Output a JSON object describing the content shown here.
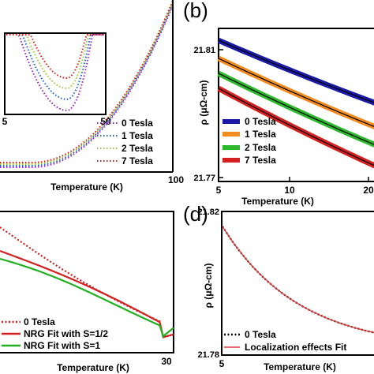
{
  "chart_data": [
    {
      "panel": "a",
      "type": "line",
      "xlabel": "Temperature (K)",
      "ylabel": "",
      "xticks": [
        "100"
      ],
      "legend": {
        "placement": "bottom-right",
        "entries": [
          "0 Tesla",
          "1 Tesla",
          "2 Tesla",
          "7 Tesla"
        ]
      },
      "series": [
        {
          "name": "0 Tesla",
          "color": "#a020c8",
          "style": "dotted"
        },
        {
          "name": "1 Tesla",
          "color": "#1f63d8",
          "style": "dotted"
        },
        {
          "name": "2 Tesla",
          "color": "#9acd32",
          "style": "dotted"
        },
        {
          "name": "7 Tesla",
          "color": "#d62020",
          "style": "dotted"
        }
      ],
      "inset": {
        "xticks": [
          "5",
          "50"
        ],
        "xlim": [
          5,
          50
        ]
      }
    },
    {
      "panel": "b",
      "label": "(b)",
      "type": "line",
      "xlabel": "Temperature (K)",
      "ylabel": "ρ (μΩ-cm)",
      "xlim": [
        5,
        23
      ],
      "ylim": [
        21.767,
        21.818
      ],
      "xticks": [
        "5",
        "10",
        "20"
      ],
      "yticks": [
        "21.81",
        "21.77"
      ],
      "legend": {
        "placement": "bottom-left",
        "entries": [
          "0 Tesla",
          "1 Tesla",
          "2 Tesla",
          "7 Tesla"
        ]
      },
      "series": [
        {
          "name": "0 Tesla",
          "color": "#1a1aa6",
          "x": [
            5,
            23
          ],
          "y": [
            21.814,
            21.793
          ]
        },
        {
          "name": "1 Tesla",
          "color": "#f28c1e",
          "x": [
            5,
            23
          ],
          "y": [
            21.808,
            21.785
          ]
        },
        {
          "name": "2 Tesla",
          "color": "#2db82d",
          "x": [
            5,
            23
          ],
          "y": [
            21.803,
            21.779
          ]
        },
        {
          "name": "7 Tesla",
          "color": "#d42020",
          "x": [
            5,
            23
          ],
          "y": [
            21.798,
            21.772
          ]
        }
      ]
    },
    {
      "panel": "c",
      "type": "line",
      "xlabel": "Temperature (K)",
      "xticks": [
        "30"
      ],
      "legend": {
        "placement": "bottom-left",
        "entries": [
          "0 Tesla",
          "NRG Fit with S=1/2",
          "NRG Fit with S=1"
        ]
      },
      "series": [
        {
          "name": "0 Tesla",
          "color": "#d42020",
          "style": "dotted"
        },
        {
          "name": "NRG Fit with S=1/2",
          "color": "#d42020",
          "style": "solid"
        },
        {
          "name": "NRG Fit with S=1",
          "color": "#22b022",
          "style": "solid"
        }
      ]
    },
    {
      "panel": "d",
      "label": "(d)",
      "type": "line",
      "xlabel": "Temperature (K)",
      "ylabel": "ρ (μΩ-cm)",
      "xlim": [
        5,
        31
      ],
      "ylim": [
        21.78,
        21.82
      ],
      "xticks": [
        "5"
      ],
      "yticks": [
        "21.82",
        "21.78"
      ],
      "legend": {
        "placement": "bottom-right",
        "entries": [
          "0 Tesla",
          "Localization effects Fit"
        ]
      },
      "series": [
        {
          "name": "0 Tesla",
          "color": "#000000",
          "style": "dotted"
        },
        {
          "name": "Localization effects Fit",
          "color": "#e04040",
          "style": "solid"
        }
      ]
    }
  ]
}
